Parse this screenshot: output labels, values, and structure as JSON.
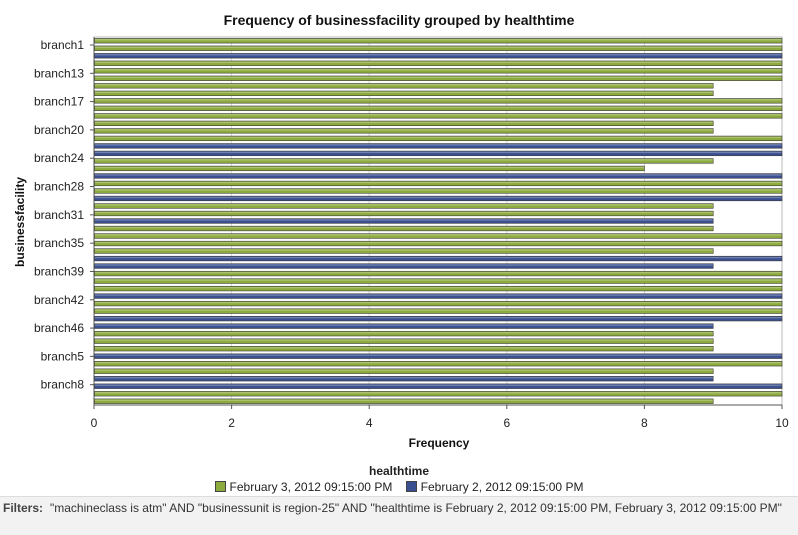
{
  "chart_data": {
    "type": "bar",
    "orientation": "horizontal",
    "title": "Frequency of businessfacility grouped by healthtime",
    "xlabel": "Frequency",
    "ylabel": "businessfacility",
    "xlim": [
      0,
      10
    ],
    "x_ticks": [
      "0",
      "2",
      "4",
      "6",
      "8",
      "10"
    ],
    "categories": [
      "branch1",
      "branch13",
      "branch17",
      "branch20",
      "branch24",
      "branch28",
      "branch31",
      "branch35",
      "branch39",
      "branch42",
      "branch46",
      "branch5",
      "branch8"
    ],
    "bars": [
      {
        "series": 0,
        "value": 10
      },
      {
        "series": 0,
        "value": 10
      },
      {
        "series": 1,
        "value": 10
      },
      {
        "series": 0,
        "value": 10
      },
      {
        "series": 0,
        "value": 10
      },
      {
        "series": 0,
        "value": 10
      },
      {
        "series": 0,
        "value": 9
      },
      {
        "series": 0,
        "value": 9
      },
      {
        "series": 0,
        "value": 10
      },
      {
        "series": 0,
        "value": 10
      },
      {
        "series": 0,
        "value": 10
      },
      {
        "series": 0,
        "value": 9
      },
      {
        "series": 0,
        "value": 9
      },
      {
        "series": 0,
        "value": 10
      },
      {
        "series": 1,
        "value": 10
      },
      {
        "series": 1,
        "value": 10
      },
      {
        "series": 0,
        "value": 9
      },
      {
        "series": 0,
        "value": 8
      },
      {
        "series": 1,
        "value": 10
      },
      {
        "series": 0,
        "value": 10
      },
      {
        "series": 0,
        "value": 10
      },
      {
        "series": 1,
        "value": 10
      },
      {
        "series": 0,
        "value": 9
      },
      {
        "series": 0,
        "value": 9
      },
      {
        "series": 1,
        "value": 9
      },
      {
        "series": 0,
        "value": 9
      },
      {
        "series": 0,
        "value": 10
      },
      {
        "series": 0,
        "value": 10
      },
      {
        "series": 0,
        "value": 9
      },
      {
        "series": 1,
        "value": 10
      },
      {
        "series": 1,
        "value": 9
      },
      {
        "series": 0,
        "value": 10
      },
      {
        "series": 0,
        "value": 10
      },
      {
        "series": 0,
        "value": 10
      },
      {
        "series": 1,
        "value": 10
      },
      {
        "series": 0,
        "value": 10
      },
      {
        "series": 0,
        "value": 10
      },
      {
        "series": 1,
        "value": 10
      },
      {
        "series": 1,
        "value": 9
      },
      {
        "series": 0,
        "value": 9
      },
      {
        "series": 0,
        "value": 9
      },
      {
        "series": 0,
        "value": 9
      },
      {
        "series": 1,
        "value": 10
      },
      {
        "series": 0,
        "value": 10
      },
      {
        "series": 0,
        "value": 9
      },
      {
        "series": 1,
        "value": 9
      },
      {
        "series": 1,
        "value": 10
      },
      {
        "series": 0,
        "value": 10
      },
      {
        "series": 0,
        "value": 9
      }
    ],
    "grid": true,
    "legend_position": "bottom",
    "legend_title": "healthtime",
    "series": [
      {
        "name": "February 3, 2012 09:15:00 PM",
        "color": "#8cab3c"
      },
      {
        "name": "February 2, 2012 09:15:00 PM",
        "color": "#3a5091"
      }
    ]
  },
  "filters": {
    "label": "Filters:",
    "text": "\"machineclass is atm\" AND \"businessunit is region-25\" AND \"healthtime is February 2, 2012 09:15:00 PM, February 3, 2012 09:15:00 PM\""
  }
}
